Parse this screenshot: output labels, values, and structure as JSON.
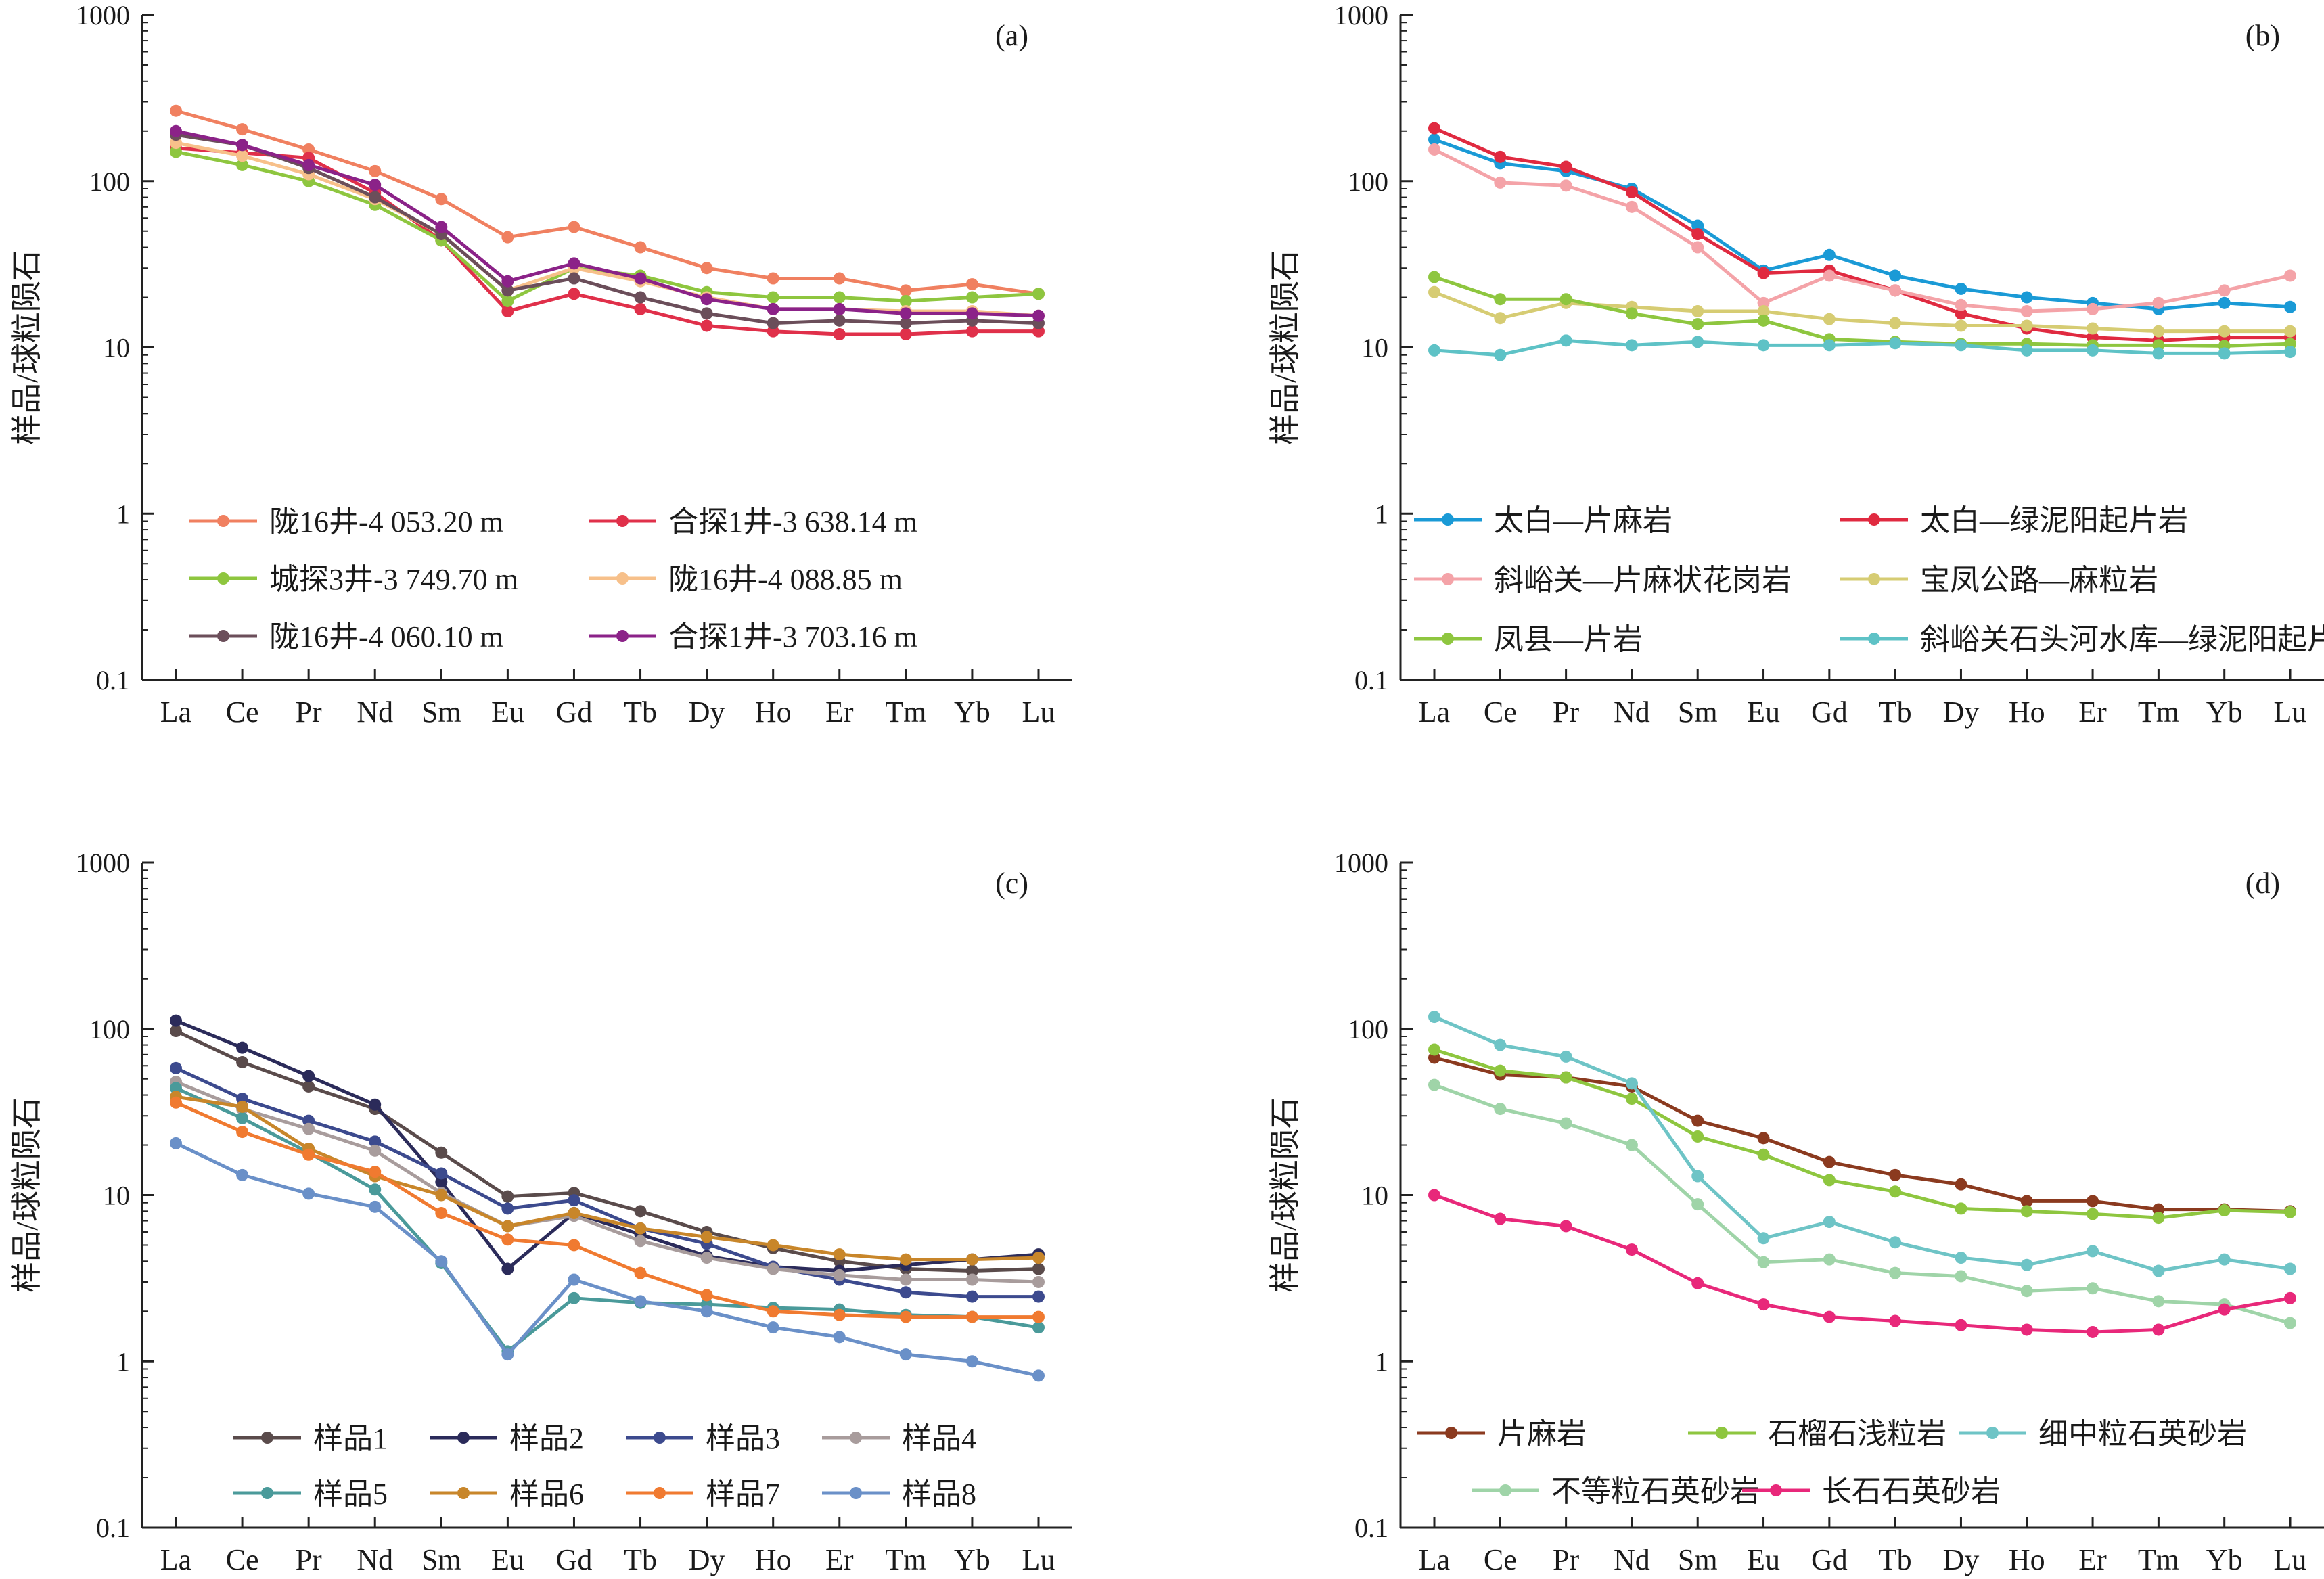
{
  "chart_data": [
    {
      "type": "line",
      "panel": "(a)",
      "ylabel": "样品/球粒陨石",
      "ylim": [
        0.1,
        1000
      ],
      "yscale": "log",
      "yticks": [
        "1000",
        "100",
        "10",
        "1",
        "0.1"
      ],
      "categories": [
        "La",
        "Ce",
        "Pr",
        "Nd",
        "Sm",
        "Eu",
        "Gd",
        "Tb",
        "Dy",
        "Ho",
        "Er",
        "Tm",
        "Yb",
        "Lu"
      ],
      "legend_columns": 2,
      "legend_position": "lower-center",
      "series": [
        {
          "name": "陇16井-4 053.20 m",
          "color": "#f08060",
          "values": [
            265,
            205,
            155,
            115,
            78,
            46,
            53,
            40,
            30,
            26,
            26,
            22,
            24,
            21
          ]
        },
        {
          "name": "合探1井-3 638.14 m",
          "color": "#e0304a",
          "values": [
            158,
            148,
            138,
            85,
            44,
            16.5,
            21,
            17,
            13.5,
            12.5,
            12,
            12,
            12.5,
            12.5
          ]
        },
        {
          "name": "城探3井-3 749.70 m",
          "color": "#8ec63f",
          "values": [
            150,
            125,
            100,
            72,
            44,
            19,
            30,
            27,
            21.5,
            20,
            20,
            19,
            20,
            21
          ]
        },
        {
          "name": "陇16井-4 088.85 m",
          "color": "#f7c08a",
          "values": [
            170,
            142,
            110,
            78,
            48,
            22,
            30,
            25,
            20,
            17,
            17,
            16.5,
            16.5,
            15.5
          ]
        },
        {
          "name": "陇16井-4 060.10 m",
          "color": "#6b4e5a",
          "values": [
            190,
            165,
            120,
            80,
            48,
            22,
            26,
            20,
            16,
            14,
            14.5,
            14,
            14.5,
            14
          ]
        },
        {
          "name": "合探1井-3 703.16 m",
          "color": "#8b2288",
          "values": [
            200,
            165,
            125,
            95,
            53,
            25,
            32,
            26,
            19.5,
            17,
            17,
            16,
            16,
            15.5
          ]
        }
      ]
    },
    {
      "type": "line",
      "panel": "(b)",
      "ylabel": "样品/球粒陨石",
      "ylim": [
        0.1,
        1000
      ],
      "yscale": "log",
      "yticks": [
        "1000",
        "100",
        "10",
        "1",
        "0.1"
      ],
      "categories": [
        "La",
        "Ce",
        "Pr",
        "Nd",
        "Sm",
        "Eu",
        "Gd",
        "Tb",
        "Dy",
        "Ho",
        "Er",
        "Tm",
        "Yb",
        "Lu"
      ],
      "legend_columns": 2,
      "legend_position": "lower-center",
      "series": [
        {
          "name": "太白—片麻岩",
          "color": "#1a9ad6",
          "values": [
            178,
            128,
            115,
            90,
            54,
            29,
            36,
            27,
            22.5,
            20,
            18.5,
            17,
            18.5,
            17.5
          ]
        },
        {
          "name": "太白—绿泥阳起片岩",
          "color": "#e02a40",
          "values": [
            208,
            140,
            122,
            86,
            48,
            28,
            29,
            22,
            16,
            13,
            11.5,
            11,
            11.5,
            11.5
          ]
        },
        {
          "name": "斜峪关—片麻状花岗岩",
          "color": "#f4a3a8",
          "values": [
            155,
            98,
            94,
            70,
            40,
            18.5,
            27,
            22,
            18,
            16.5,
            17,
            18.5,
            22,
            27
          ]
        },
        {
          "name": "宝凤公路—麻粒岩",
          "color": "#d6cc73",
          "values": [
            21.5,
            15,
            18.5,
            17.5,
            16.5,
            16.5,
            14.8,
            14,
            13.5,
            13.5,
            13,
            12.5,
            12.5,
            12.5
          ]
        },
        {
          "name": "凤县—片岩",
          "color": "#8ec63f",
          "values": [
            26.5,
            19.5,
            19.5,
            16,
            13.8,
            14.5,
            11.2,
            10.8,
            10.5,
            10.5,
            10.3,
            10.3,
            10.2,
            10.5
          ]
        },
        {
          "name": "斜峪关石头河水库—绿泥阳起片岩",
          "color": "#5ec2c6",
          "values": [
            9.6,
            9,
            11,
            10.3,
            10.8,
            10.3,
            10.3,
            10.6,
            10.3,
            9.6,
            9.6,
            9.2,
            9.2,
            9.4
          ]
        }
      ]
    },
    {
      "type": "line",
      "panel": "(c)",
      "ylabel": "样品/球粒陨石",
      "ylim": [
        0.1,
        1000
      ],
      "yscale": "log",
      "yticks": [
        "1000",
        "100",
        "10",
        "1",
        "0.1"
      ],
      "categories": [
        "La",
        "Ce",
        "Pr",
        "Nd",
        "Sm",
        "Eu",
        "Gd",
        "Tb",
        "Dy",
        "Ho",
        "Er",
        "Tm",
        "Yb",
        "Lu"
      ],
      "legend_columns": 4,
      "legend_position": "lower-center",
      "series": [
        {
          "name": "样品1",
          "color": "#5a4b4b",
          "values": [
            97,
            63,
            45,
            33,
            18,
            9.8,
            10.3,
            8,
            6,
            4.8,
            4,
            3.6,
            3.5,
            3.6
          ]
        },
        {
          "name": "样品2",
          "color": "#2b2b5a",
          "values": [
            112,
            77,
            52,
            35,
            12,
            3.6,
            7.8,
            5.8,
            4.3,
            3.7,
            3.5,
            3.8,
            4.1,
            4.4
          ]
        },
        {
          "name": "样品3",
          "color": "#3c4a8e",
          "values": [
            58,
            38,
            28,
            21,
            13.5,
            8.3,
            9.3,
            6.3,
            5.1,
            3.7,
            3.1,
            2.6,
            2.45,
            2.45
          ]
        },
        {
          "name": "样品4",
          "color": "#a89c9c",
          "values": [
            48,
            33,
            25,
            18.5,
            10.3,
            6.5,
            7.5,
            5.3,
            4.2,
            3.6,
            3.3,
            3.1,
            3.1,
            3
          ]
        },
        {
          "name": "样品5",
          "color": "#4a9a9a",
          "values": [
            44,
            29,
            18,
            10.8,
            3.9,
            1.15,
            2.4,
            2.25,
            2.2,
            2.1,
            2.05,
            1.9,
            1.85,
            1.6
          ]
        },
        {
          "name": "样品6",
          "color": "#c8862a",
          "values": [
            39,
            34,
            19,
            13,
            10,
            6.5,
            7.8,
            6.3,
            5.6,
            5,
            4.4,
            4.1,
            4.1,
            4.2
          ]
        },
        {
          "name": "样品7",
          "color": "#f07a30",
          "values": [
            36,
            24,
            17.5,
            13.8,
            7.8,
            5.4,
            5,
            3.4,
            2.5,
            2,
            1.9,
            1.85,
            1.85,
            1.85
          ]
        },
        {
          "name": "样品8",
          "color": "#6a90c8",
          "values": [
            20.5,
            13.2,
            10.2,
            8.5,
            4,
            1.1,
            3.1,
            2.3,
            2,
            1.6,
            1.4,
            1.1,
            1,
            0.82
          ]
        }
      ]
    },
    {
      "type": "line",
      "panel": "(d)",
      "ylabel": "样品/球粒陨石",
      "ylim": [
        0.1,
        1000
      ],
      "yscale": "log",
      "yticks": [
        "1000",
        "100",
        "10",
        "1",
        "0.1"
      ],
      "categories": [
        "La",
        "Ce",
        "Pr",
        "Nd",
        "Sm",
        "Eu",
        "Gd",
        "Tb",
        "Dy",
        "Ho",
        "Er",
        "Tm",
        "Yb",
        "Lu"
      ],
      "legend_columns": 3,
      "legend_position": "lower-center",
      "series": [
        {
          "name": "片麻岩",
          "color": "#8b3a1f",
          "values": [
            67,
            53,
            51,
            45,
            28,
            22,
            15.8,
            13.2,
            11.6,
            9.2,
            9.2,
            8.2,
            8.2,
            8
          ]
        },
        {
          "name": "石榴石浅粒岩",
          "color": "#8ec63f",
          "values": [
            75,
            56,
            51,
            38,
            22.5,
            17.5,
            12.3,
            10.5,
            8.3,
            8,
            7.7,
            7.3,
            8.1,
            7.9
          ]
        },
        {
          "name": "细中粒石英砂岩",
          "color": "#6ec4c6",
          "values": [
            118,
            80,
            68,
            47,
            13,
            5.5,
            6.9,
            5.2,
            4.2,
            3.8,
            4.6,
            3.5,
            4.1,
            3.6
          ]
        },
        {
          "name": "不等粒石英砂岩",
          "color": "#9fd4a8",
          "values": [
            46,
            33,
            27,
            20,
            8.8,
            3.95,
            4.1,
            3.4,
            3.25,
            2.65,
            2.75,
            2.3,
            2.2,
            1.7
          ]
        },
        {
          "name": "长石石英砂岩",
          "color": "#e8287a",
          "values": [
            10,
            7.2,
            6.5,
            4.7,
            2.95,
            2.2,
            1.85,
            1.75,
            1.65,
            1.55,
            1.5,
            1.55,
            2.05,
            2.4
          ]
        }
      ]
    }
  ]
}
